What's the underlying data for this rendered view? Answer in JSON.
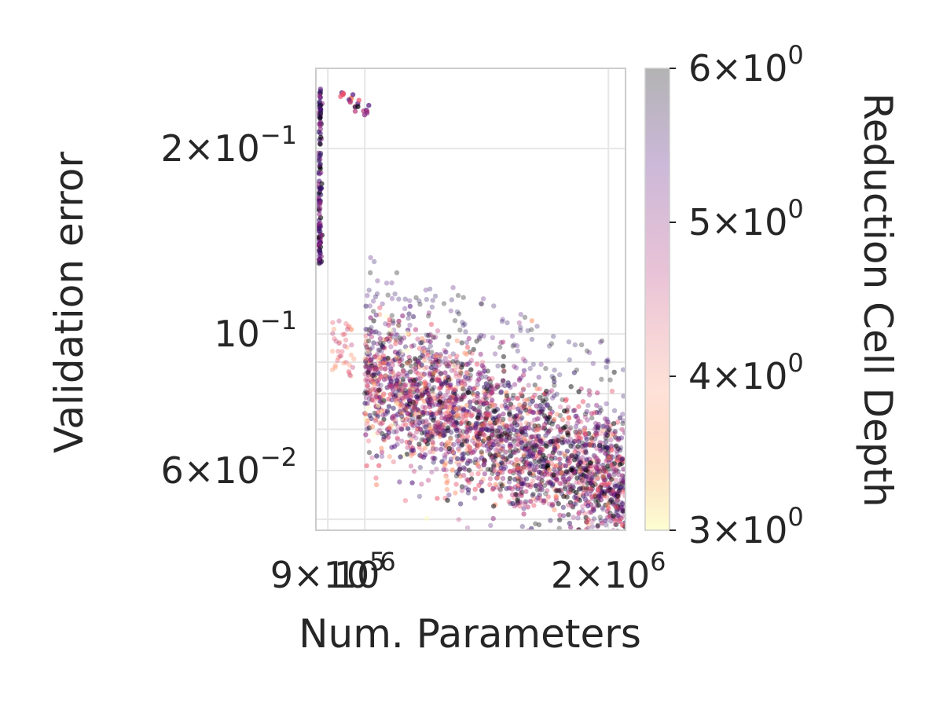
{
  "chart_data": {
    "type": "scatter",
    "title": "",
    "xlabel": "Num. Parameters",
    "ylabel": "Validation error",
    "colorbar_label": "Reduction Cell Depth",
    "xscale": "log",
    "yscale": "log",
    "xlim": [
      870000,
      2100000
    ],
    "ylim": [
      0.048,
      0.27
    ],
    "grid": true,
    "x_ticks": [
      {
        "value": 900000,
        "mantissa": "9",
        "exp": "5"
      },
      {
        "value": 1000000,
        "mantissa": "10",
        "exp": "6"
      },
      {
        "value": 2000000,
        "mantissa": "2",
        "exp": "6"
      }
    ],
    "y_ticks": [
      {
        "value": 0.2,
        "mantissa": "2",
        "exp": "−1"
      },
      {
        "value": 0.1,
        "mantissa": "10",
        "exp": "−1"
      },
      {
        "value": 0.06,
        "mantissa": "6",
        "exp": "−2"
      }
    ],
    "colorbar": {
      "range": [
        3,
        6
      ],
      "colormap": "magma_r",
      "ticks": [
        {
          "value": 6,
          "mantissa": "6",
          "exp": "0"
        },
        {
          "value": 5,
          "mantissa": "5",
          "exp": "0"
        },
        {
          "value": 4,
          "mantissa": "4",
          "exp": "0"
        },
        {
          "value": 3,
          "mantissa": "3",
          "exp": "0"
        }
      ]
    },
    "series": [
      {
        "description_cluster": "main cloud",
        "x_range": [
          1000000,
          2100000
        ],
        "y_range": [
          0.05,
          0.12
        ],
        "trend": "error decreases as parameters increase",
        "color_by": "reduction cell depth (3–6)"
      },
      {
        "description_cluster": "upper outliers",
        "points": [
          {
            "x": 960000,
            "y": 0.24
          },
          {
            "x": 980000,
            "y": 0.235
          },
          {
            "x": 1000000,
            "y": 0.23
          },
          {
            "x": 940000,
            "y": 0.245
          }
        ]
      },
      {
        "description_cluster": "left edge band",
        "x": 880000,
        "y_range": [
          0.13,
          0.25
        ]
      }
    ]
  }
}
